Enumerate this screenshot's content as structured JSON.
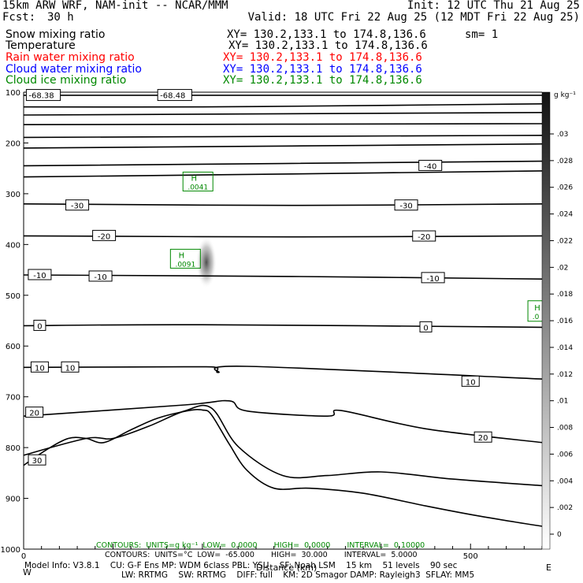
{
  "header": {
    "title": "15km ARW WRF, NAM-init -- NCAR/MMM",
    "init": "Init: 12 UTC Thu 21 Aug 25",
    "fcst_label": "Fcst:",
    "fcst_value": "30 h",
    "valid": "Valid: 18 UTC Fri 22 Aug 25 (12 MDT Fri 22 Aug 25)"
  },
  "fields": [
    {
      "name": "Snow mixing ratio",
      "xy": "XY= 130.2,133.1 to 174.8,136.6",
      "extra": "sm= 1",
      "color": "#000000"
    },
    {
      "name": "Temperature",
      "xy": "XY= 130.2,133.1 to 174.8,136.6",
      "extra": "",
      "color": "#000000"
    },
    {
      "name": "Rain water mixing ratio",
      "xy": "XY= 130.2,133.1 to 174.8,136.6",
      "extra": "",
      "color": "#ff0000"
    },
    {
      "name": "Cloud water mixing ratio",
      "xy": "XY= 130.2,133.1 to 174.8,136.6",
      "extra": "",
      "color": "#0000ff"
    },
    {
      "name": "Cloud ice mixing ratio",
      "xy": "XY= 130.2,133.1 to 174.8,136.6",
      "extra": "",
      "color": "#008800"
    }
  ],
  "footer": {
    "contours_green": "CONTOURS:  UNITS=g kg⁻¹  LOW=  0.0000       HIGH=  0.0000       INTERVAL=  0.10000",
    "contours_black": "CONTOURS:  UNITS=°C  LOW=  -65.000       HIGH=  30.000       INTERVAL=  5.0000",
    "model_line1": "Model Info: V3.8.1    CU: G-F Ens MP: WDM 6class PBL: YSU    SF: Noah LSM    15 km    51 levels    90 sec",
    "model_line2": "LW: RRTMG    SW: RRTMG    DIFF: full    KM: 2D Smagor DAMP: Rayleigh3  SFLAY: MM5",
    "xaxis_title": "Distance (km)",
    "start_marker": "W",
    "end_marker": "E"
  },
  "colorbar": {
    "unit": "g kg⁻¹",
    "ticks": [
      ".03",
      ".028",
      ".026",
      ".024",
      ".022",
      ".02",
      ".018",
      ".016",
      ".014",
      ".012",
      ".01",
      ".008",
      ".006",
      ".004",
      ".002",
      "0"
    ]
  },
  "chart_data": {
    "type": "line",
    "title": "",
    "xlabel": "Distance (km)",
    "ylabel": "",
    "xlim": [
      0,
      580
    ],
    "ylim": [
      1000,
      100
    ],
    "x_ticks": [
      {
        "value": 0,
        "label": "0"
      },
      {
        "value": 500,
        "label": "500"
      }
    ],
    "y_ticks": [
      {
        "value": 100,
        "label": "100"
      },
      {
        "value": 200,
        "label": "200"
      },
      {
        "value": 300,
        "label": "300"
      },
      {
        "value": 400,
        "label": "400"
      },
      {
        "value": 500,
        "label": "500"
      },
      {
        "value": 600,
        "label": "600"
      },
      {
        "value": 700,
        "label": "700"
      },
      {
        "value": 800,
        "label": "800"
      },
      {
        "value": 900,
        "label": "900"
      },
      {
        "value": 1000,
        "label": "1000"
      }
    ],
    "isotherms": [
      {
        "x": [
          0,
          580
        ],
        "y": [
          106,
          106
        ]
      },
      {
        "x": [
          0,
          200,
          400,
          580
        ],
        "y": [
          129,
          129,
          126,
          123
        ]
      },
      {
        "x": [
          0,
          580
        ],
        "y": [
          145,
          140
        ]
      },
      {
        "x": [
          0,
          580
        ],
        "y": [
          164,
          162
        ]
      },
      {
        "x": [
          0,
          300,
          580
        ],
        "y": [
          189,
          187,
          185
        ]
      },
      {
        "x": [
          0,
          300,
          580
        ],
        "y": [
          210,
          206,
          202
        ]
      },
      {
        "x": [
          0,
          580
        ],
        "y": [
          245,
          236
        ]
      },
      {
        "label": "-40",
        "label_positions": [
          {
            "x": 455,
            "y": 245
          }
        ],
        "x": [
          0,
          300,
          580
        ],
        "y": [
          267,
          261,
          255
        ]
      },
      {
        "label": "-30",
        "label_positions": [
          {
            "x": 60,
            "y": 323
          },
          {
            "x": 428,
            "y": 323
          }
        ],
        "x": [
          0,
          300,
          580
        ],
        "y": [
          320,
          323,
          320
        ]
      },
      {
        "label": "-20",
        "label_positions": [
          {
            "x": 90,
            "y": 383
          },
          {
            "x": 448,
            "y": 384
          }
        ],
        "x": [
          0,
          300,
          580
        ],
        "y": [
          383,
          385,
          383
        ]
      },
      {
        "label": "-10",
        "label_positions": [
          {
            "x": 18,
            "y": 460
          },
          {
            "x": 86,
            "y": 463
          },
          {
            "x": 458,
            "y": 466
          }
        ],
        "x": [
          0,
          300,
          580
        ],
        "y": [
          460,
          463,
          468
        ]
      },
      {
        "label": "0",
        "label_positions": [
          {
            "x": 18,
            "y": 560
          },
          {
            "x": 450,
            "y": 563
          }
        ],
        "x": [
          0,
          200,
          580
        ],
        "y": [
          560,
          558,
          563
        ]
      },
      {
        "label": "10",
        "label_positions": [
          {
            "x": 18,
            "y": 642
          },
          {
            "x": 52,
            "y": 642
          },
          {
            "x": 500,
            "y": 670
          }
        ],
        "x": [
          0,
          180,
          215,
          218,
          250,
          580
        ],
        "y": [
          642,
          641,
          642,
          652,
          640,
          665
        ]
      },
      {
        "label": "20",
        "label_positions": [
          {
            "x": 12,
            "y": 731
          },
          {
            "x": 514,
            "y": 780
          }
        ],
        "x": [
          0,
          180,
          230,
          250,
          340,
          355,
          450,
          580
        ],
        "y": [
          738,
          716,
          708,
          728,
          738,
          727,
          763,
          790
        ]
      },
      {
        "label": "30",
        "label_positions": [
          {
            "x": 15,
            "y": 825
          }
        ],
        "x": [
          0,
          70,
          100,
          140,
          180,
          210,
          240,
          290,
          340,
          400,
          480,
          580
        ],
        "y": [
          815,
          782,
          782,
          758,
          728,
          722,
          798,
          855,
          855,
          848,
          862,
          875
        ]
      }
    ],
    "terrain": {
      "x": [
        0,
        25,
        50,
        70,
        90,
        120,
        150,
        185,
        200,
        210,
        230,
        250,
        280,
        320,
        380,
        450,
        510,
        580
      ],
      "y": [
        835,
        805,
        782,
        782,
        790,
        765,
        742,
        727,
        726,
        735,
        793,
        845,
        880,
        880,
        890,
        915,
        935,
        955
      ]
    },
    "H_labels": [
      {
        "letter": "H",
        "value": ".0041",
        "x": 195,
        "y": 276
      },
      {
        "letter": "H",
        "value": ".0091",
        "x": 181,
        "y": 428
      }
    ],
    "edge_label": {
      "letter": "H",
      "value": ".0",
      "x": 573,
      "y": 531
    },
    "contour_extremes": [
      {
        "value": "-68.38",
        "x": 3,
        "y": 104
      },
      {
        "value": "-68.48",
        "x": 150,
        "y": 104
      }
    ]
  }
}
